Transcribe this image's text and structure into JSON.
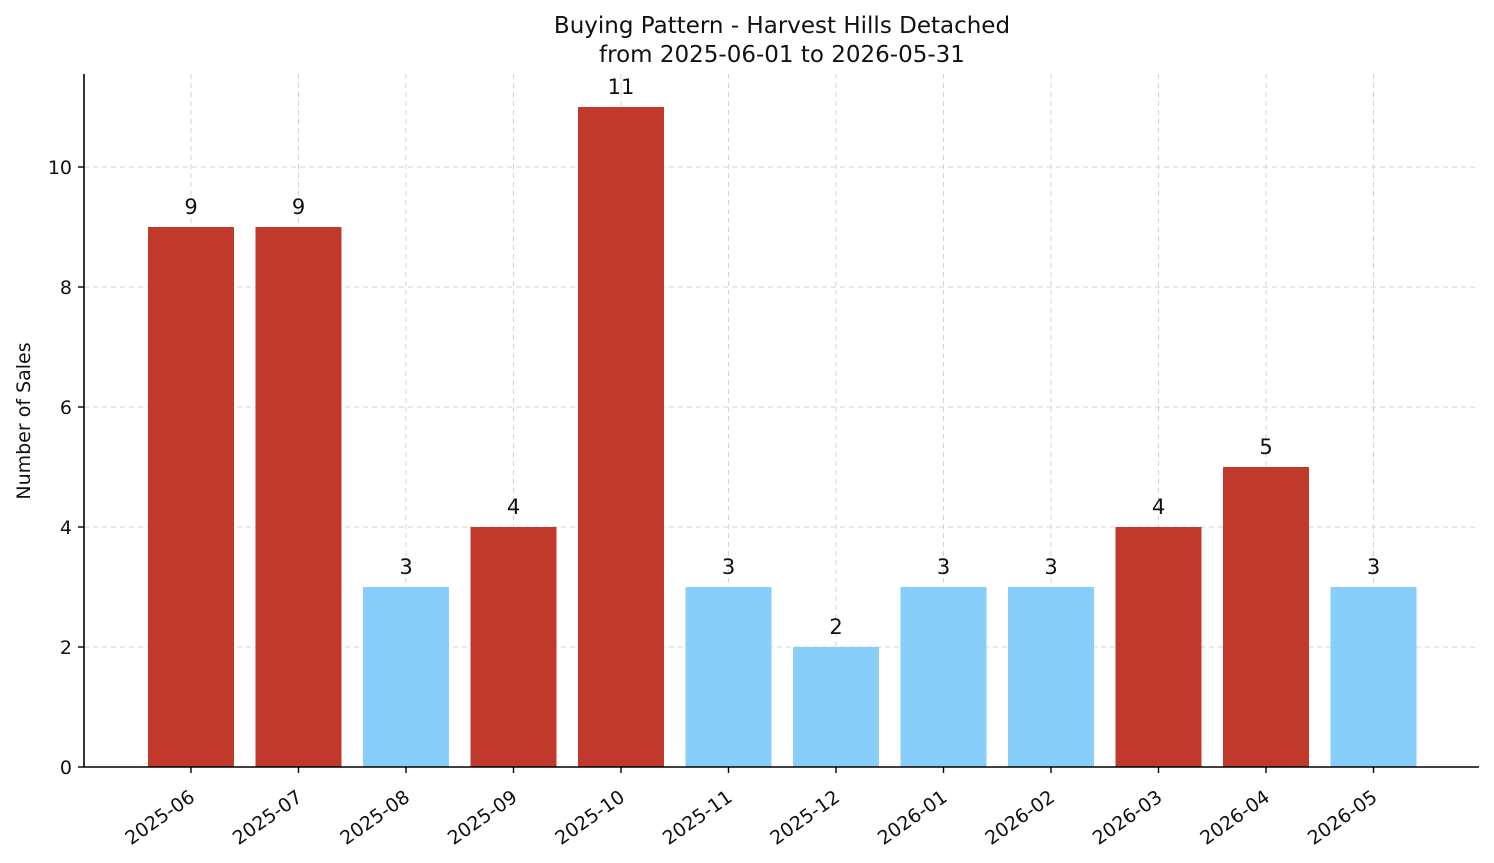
{
  "chart_data": {
    "type": "bar",
    "title": "Buying Pattern - Harvest Hills Detached",
    "subtitle": "from 2025-06-01 to 2026-05-31",
    "xlabel": "",
    "ylabel": "Number of Sales",
    "categories": [
      "2025-06",
      "2025-07",
      "2025-08",
      "2025-09",
      "2025-10",
      "2025-11",
      "2025-12",
      "2026-01",
      "2026-02",
      "2026-03",
      "2026-04",
      "2026-05"
    ],
    "values": [
      9,
      9,
      3,
      4,
      11,
      3,
      2,
      3,
      3,
      4,
      5,
      3
    ],
    "bar_colors": [
      "#c0392b",
      "#c0392b",
      "#87cefa",
      "#c0392b",
      "#c0392b",
      "#87cefa",
      "#87cefa",
      "#87cefa",
      "#87cefa",
      "#c0392b",
      "#c0392b",
      "#87cefa"
    ],
    "ylim": [
      0,
      11.55
    ],
    "yticks": [
      0,
      2,
      4,
      6,
      8,
      10
    ],
    "grid": true,
    "data_labels": true
  }
}
